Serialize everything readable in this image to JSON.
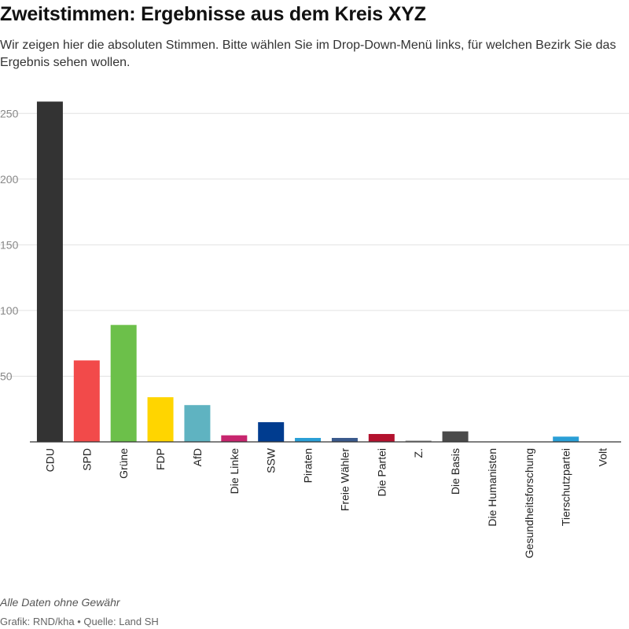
{
  "header": {
    "title": "Zweitstimmen: Ergebnisse aus dem Kreis XYZ",
    "subtitle": "Wir zeigen hier die absoluten Stimmen. Bitte wählen Sie im Drop-Down-Menü links, für welchen Bezirk Sie das Ergebnis sehen wollen."
  },
  "footer": {
    "note": "Alle Daten ohne Gewähr",
    "credits": "Grafik: RND/kha • Quelle: Land SH"
  },
  "chart_data": {
    "type": "bar",
    "title": "Zweitstimmen: Ergebnisse aus dem Kreis XYZ",
    "xlabel": "",
    "ylabel": "",
    "ylim": [
      0,
      260
    ],
    "yticks": [
      50,
      100,
      150,
      200,
      250
    ],
    "grid": true,
    "legend": "none",
    "categories": [
      "CDU",
      "SPD",
      "Grüne",
      "FDP",
      "AfD",
      "Die Linke",
      "SSW",
      "Piraten",
      "Freie Wähler",
      "Die Partei",
      "Z.",
      "Die Basis",
      "Die Humanisten",
      "Gesundheitsforschung",
      "Tierschutzpartei",
      "Volt"
    ],
    "values": [
      259,
      62,
      89,
      34,
      28,
      5,
      15,
      3,
      3,
      6,
      1,
      8,
      0,
      0,
      4,
      0
    ],
    "colors": [
      "#333333",
      "#f24a4a",
      "#6cc04a",
      "#ffd500",
      "#5fb3c1",
      "#c7256e",
      "#003c8f",
      "#2a9fd6",
      "#3a5a8c",
      "#b3122e",
      "#999999",
      "#4a4a4a",
      "#cccccc",
      "#cccccc",
      "#2a9fd6",
      "#cccccc"
    ]
  }
}
